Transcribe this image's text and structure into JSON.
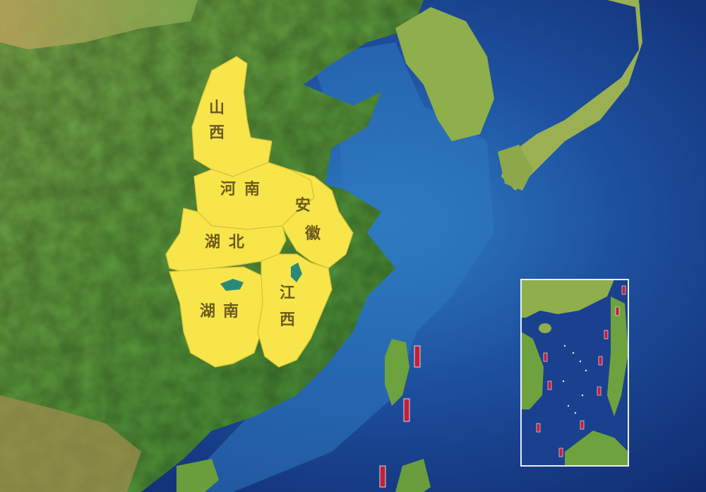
{
  "map": {
    "provinces": [
      {
        "id": "shanxi",
        "chars": [
          "山",
          "西"
        ]
      },
      {
        "id": "henan",
        "chars": [
          "河",
          "南"
        ]
      },
      {
        "id": "anhui",
        "chars": [
          "安",
          "徽"
        ]
      },
      {
        "id": "hubei",
        "chars": [
          "湖",
          "北"
        ]
      },
      {
        "id": "hunan",
        "chars": [
          "湖",
          "南"
        ]
      },
      {
        "id": "jiangxi",
        "chars": [
          "江",
          "西"
        ]
      }
    ],
    "colors": {
      "highlight": "#f7e54a",
      "land": "#5a9a3a",
      "land_dark": "#3f7a2a",
      "sea_shallow": "#2f7fc4",
      "sea_deep": "#12306f",
      "label": "#6b5a1e",
      "lake": "#2a8a7a",
      "flag_red": "#c0203a"
    },
    "inset": {
      "name": "south-china-sea-inset"
    }
  }
}
